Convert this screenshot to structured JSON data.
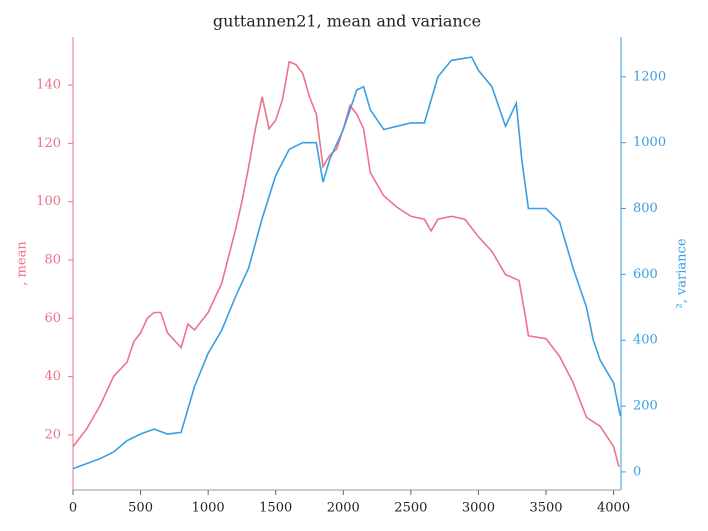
{
  "chart_data": {
    "type": "line",
    "title": "guttannen21, mean and variance",
    "ylabel": ", mean",
    "y2label": "², variance",
    "xlim": [
      0,
      4055
    ],
    "xticks": [
      0,
      500,
      1000,
      1500,
      2000,
      2500,
      3000,
      3500,
      4000
    ],
    "ylim": [
      1.1,
      156.5
    ],
    "yticks": [
      20,
      40,
      60,
      80,
      100,
      120,
      140
    ],
    "y2lim": [
      -55,
      1321
    ],
    "y2ticks": [
      0,
      200,
      400,
      600,
      800,
      1000,
      1200
    ],
    "series": [
      {
        "name": "mean",
        "color": "#ee7289",
        "x": [
          0,
          100,
          200,
          300,
          400,
          450,
          500,
          550,
          600,
          650,
          700,
          800,
          850,
          900,
          1000,
          1100,
          1200,
          1250,
          1300,
          1350,
          1400,
          1450,
          1500,
          1550,
          1600,
          1650,
          1700,
          1750,
          1800,
          1850,
          1900,
          1950,
          2000,
          2050,
          2100,
          2150,
          2200,
          2300,
          2400,
          2500,
          2600,
          2650,
          2700,
          2800,
          2900,
          3000,
          3100,
          3200,
          3300,
          3350,
          3370,
          3500,
          3600,
          3700,
          3800,
          3900,
          4000,
          4040
        ],
        "values": [
          16,
          22,
          30,
          40,
          45,
          52,
          55,
          60,
          62,
          62,
          55,
          50,
          58,
          56,
          62,
          72,
          90,
          100,
          112,
          125,
          136,
          125,
          128,
          135,
          148,
          147,
          144,
          136,
          130,
          112,
          116,
          118,
          125,
          133,
          130,
          125,
          110,
          102,
          98,
          95,
          94,
          90,
          94,
          95,
          94,
          88,
          83,
          75,
          73,
          60,
          54,
          53,
          47,
          38,
          26,
          23,
          16,
          9
        ]
      },
      {
        "name": "variance",
        "color": "#3a9ee4",
        "axis": "y2",
        "x": [
          0,
          200,
          300,
          400,
          500,
          600,
          700,
          800,
          900,
          1000,
          1100,
          1200,
          1300,
          1400,
          1500,
          1600,
          1700,
          1800,
          1850,
          1900,
          2000,
          2100,
          2150,
          2200,
          2300,
          2400,
          2500,
          2600,
          2700,
          2800,
          2950,
          3000,
          3100,
          3200,
          3280,
          3320,
          3370,
          3500,
          3600,
          3700,
          3800,
          3850,
          3900,
          4000,
          4050
        ],
        "values": [
          10,
          40,
          60,
          95,
          115,
          130,
          115,
          120,
          260,
          360,
          430,
          530,
          620,
          770,
          900,
          980,
          1000,
          1000,
          880,
          950,
          1040,
          1160,
          1170,
          1100,
          1040,
          1050,
          1060,
          1060,
          1200,
          1250,
          1260,
          1220,
          1170,
          1050,
          1120,
          950,
          800,
          800,
          760,
          620,
          500,
          400,
          340,
          270,
          170
        ]
      }
    ]
  }
}
